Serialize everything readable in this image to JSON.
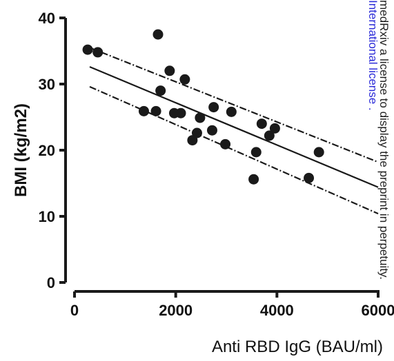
{
  "chart_data": {
    "type": "scatter",
    "xlabel": "Anti RBD IgG (BAU/ml)",
    "ylabel": "BMI (kg/m2)",
    "xlim": [
      0,
      6000
    ],
    "ylim": [
      0,
      40
    ],
    "x_ticks": [
      0,
      2000,
      4000,
      6000
    ],
    "x_tick_labels": [
      "0",
      "2000",
      "4000",
      "6000"
    ],
    "y_ticks": [
      0,
      10,
      20,
      30,
      40
    ],
    "y_tick_labels": [
      "0",
      "10",
      "20",
      "30",
      "40"
    ],
    "grid": false,
    "legend": "none",
    "points": [
      {
        "x": 260,
        "y": 35.2
      },
      {
        "x": 460,
        "y": 34.8
      },
      {
        "x": 1650,
        "y": 37.5
      },
      {
        "x": 1880,
        "y": 32.0
      },
      {
        "x": 1700,
        "y": 29.0
      },
      {
        "x": 2180,
        "y": 30.7
      },
      {
        "x": 1370,
        "y": 25.9
      },
      {
        "x": 1610,
        "y": 25.9
      },
      {
        "x": 1970,
        "y": 25.6
      },
      {
        "x": 2100,
        "y": 25.6
      },
      {
        "x": 2480,
        "y": 24.9
      },
      {
        "x": 2750,
        "y": 26.5
      },
      {
        "x": 3100,
        "y": 25.8
      },
      {
        "x": 2420,
        "y": 22.6
      },
      {
        "x": 2330,
        "y": 21.5
      },
      {
        "x": 2720,
        "y": 23.0
      },
      {
        "x": 2980,
        "y": 20.9
      },
      {
        "x": 3590,
        "y": 19.7
      },
      {
        "x": 3700,
        "y": 24.0
      },
      {
        "x": 3960,
        "y": 23.3
      },
      {
        "x": 3850,
        "y": 22.2
      },
      {
        "x": 4830,
        "y": 19.7
      },
      {
        "x": 3540,
        "y": 15.6
      },
      {
        "x": 4630,
        "y": 15.8
      }
    ],
    "regression_line": {
      "x": [
        300,
        6000
      ],
      "y": [
        32.6,
        14.4
      ]
    },
    "confidence_band_upper": {
      "x": [
        300,
        6000
      ],
      "y": [
        35.5,
        18.2
      ]
    },
    "confidence_band_lower": {
      "x": [
        300,
        6000
      ],
      "y": [
        29.6,
        10.4
      ]
    },
    "colors": {
      "point": "#1a1a1a",
      "line": "#1a1a1a",
      "axis": "#1a1a1a"
    }
  },
  "watermark": {
    "line1": "medRxiv a license to display the preprint in perpetuity.",
    "line2": "International license ."
  }
}
